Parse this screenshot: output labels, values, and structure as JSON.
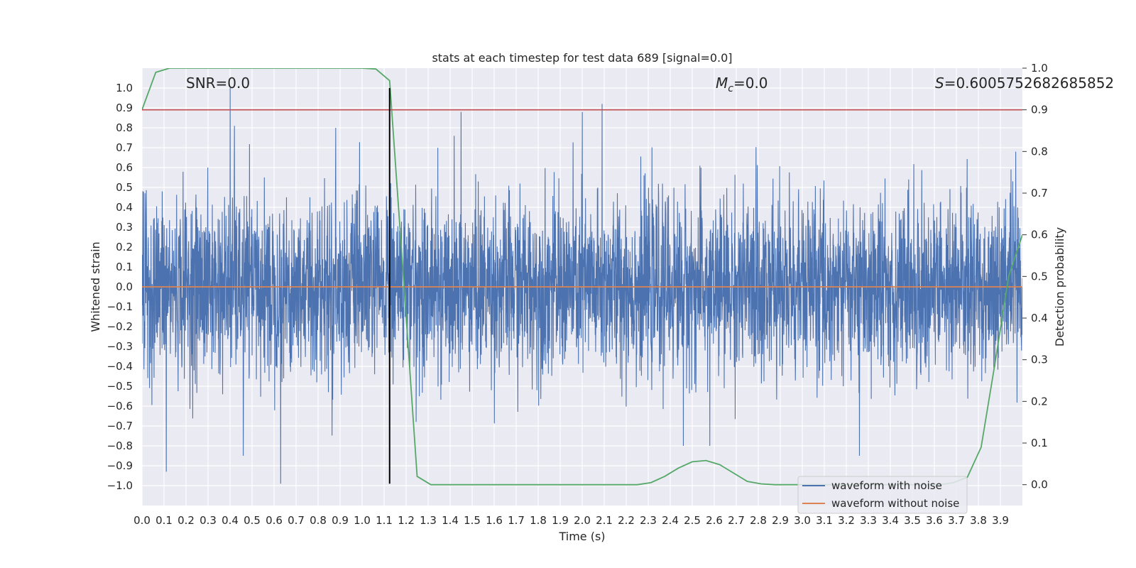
{
  "chart_data": {
    "type": "line",
    "title": "stats at each timestep for test data 689 [signal=0.0]",
    "xlabel": "Time (s)",
    "ylabel": "Whitened strain",
    "y2label": "Detection probability",
    "xlim": [
      0.0,
      4.0
    ],
    "ylim": [
      -1.1,
      1.1
    ],
    "y2lim": [
      -0.05,
      1.0
    ],
    "x_ticks": [
      "0.0",
      "0.1",
      "0.2",
      "0.3",
      "0.4",
      "0.5",
      "0.6",
      "0.7",
      "0.8",
      "0.9",
      "1.0",
      "1.1",
      "1.2",
      "1.3",
      "1.4",
      "1.5",
      "1.6",
      "1.7",
      "1.8",
      "1.9",
      "2.0",
      "2.1",
      "2.2",
      "2.3",
      "2.4",
      "2.5",
      "2.6",
      "2.7",
      "2.8",
      "2.9",
      "3.0",
      "3.1",
      "3.2",
      "3.3",
      "3.4",
      "3.5",
      "3.6",
      "3.7",
      "3.8",
      "3.9"
    ],
    "y_ticks": [
      "1.0",
      "0.9",
      "0.8",
      "0.7",
      "0.6",
      "0.5",
      "0.4",
      "0.3",
      "0.2",
      "0.1",
      "0.0",
      "−0.1",
      "−0.2",
      "−0.3",
      "−0.4",
      "−0.5",
      "−0.6",
      "−0.7",
      "−0.8",
      "−0.9",
      "−1.0"
    ],
    "y2_ticks": [
      "1.0",
      "0.9",
      "0.8",
      "0.7",
      "0.6",
      "0.5",
      "0.4",
      "0.3",
      "0.2",
      "0.1",
      "0.0"
    ],
    "annotations": {
      "snr": "SNR=0.0",
      "mc_symbol": "M",
      "mc_sub": "c",
      "mc_value": "=0.0",
      "s_symbol": "S",
      "s_value": "=0.6005752682685852"
    },
    "legend": {
      "position": "lower-right",
      "entries": [
        {
          "label": "waveform with noise",
          "color": "#4c72b0"
        },
        {
          "label": "waveform without noise",
          "color": "#dd8452"
        }
      ]
    },
    "threshold": {
      "axis": "y2",
      "value": 0.9,
      "color": "#c44e52"
    },
    "marker_vline": {
      "x": 1.125,
      "ymin": -0.99,
      "ymax": 1.0,
      "color": "#000000"
    },
    "series": [
      {
        "name": "waveform with noise",
        "axis": "y",
        "color": "#4c72b0",
        "render": "dense-noise",
        "sample_count": 4096,
        "typical_amplitude": 0.22,
        "peaks": [
          {
            "x": 0.4,
            "y": 1.0
          },
          {
            "x": 0.42,
            "y": 0.81
          },
          {
            "x": 0.88,
            "y": 0.8
          },
          {
            "x": 1.45,
            "y": 0.88
          },
          {
            "x": 2.0,
            "y": 0.88
          },
          {
            "x": 2.09,
            "y": 0.92
          },
          {
            "x": 0.11,
            "y": -0.93
          },
          {
            "x": 0.63,
            "y": -0.99
          },
          {
            "x": 0.46,
            "y": -0.85
          },
          {
            "x": 2.46,
            "y": -0.8
          },
          {
            "x": 2.58,
            "y": -0.8
          },
          {
            "x": 3.26,
            "y": -0.85
          },
          {
            "x": 3.97,
            "y": 0.68
          }
        ]
      },
      {
        "name": "waveform without noise",
        "axis": "y",
        "color": "#dd8452",
        "x": [
          0.0,
          4.0
        ],
        "y": [
          0.0,
          0.0
        ]
      },
      {
        "name": "detection probability",
        "axis": "y2",
        "color": "#55a868",
        "x": [
          0.0,
          0.0625,
          0.125,
          0.1875,
          0.25,
          0.5,
          0.75,
          1.0,
          1.0625,
          1.125,
          1.1875,
          1.25,
          1.3125,
          1.375,
          1.5,
          2.0,
          2.25,
          2.3125,
          2.375,
          2.4375,
          2.5,
          2.5625,
          2.625,
          2.6875,
          2.75,
          2.8125,
          2.875,
          3.0,
          3.25,
          3.5,
          3.625,
          3.6875,
          3.75,
          3.8125,
          3.875,
          3.9375,
          4.0
        ],
        "y": [
          0.9,
          0.99,
          1.0,
          1.0,
          1.0,
          1.0,
          1.0,
          1.0,
          0.998,
          0.97,
          0.5,
          0.02,
          0.0,
          0.0,
          0.0,
          0.0,
          0.0,
          0.005,
          0.02,
          0.04,
          0.055,
          0.058,
          0.048,
          0.028,
          0.008,
          0.002,
          0.0,
          0.0,
          0.0,
          0.0,
          0.0,
          0.005,
          0.018,
          0.09,
          0.29,
          0.5,
          0.6
        ]
      }
    ]
  }
}
